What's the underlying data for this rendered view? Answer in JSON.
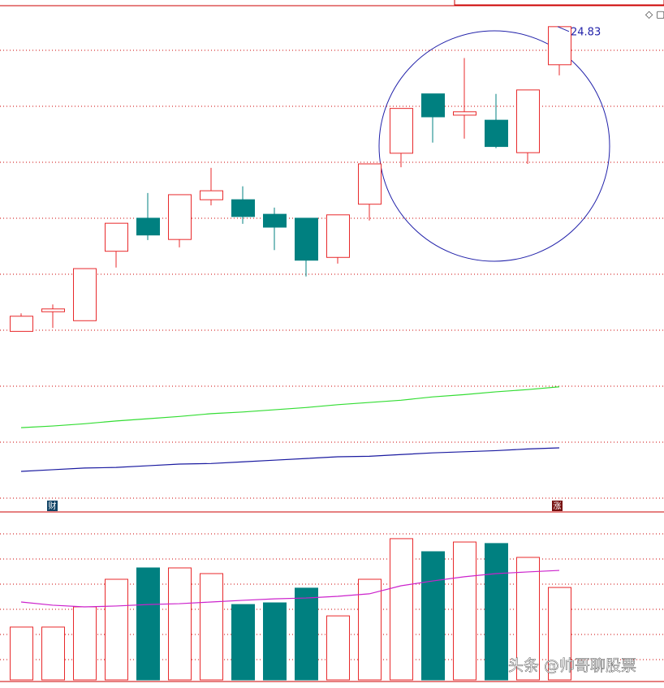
{
  "chart_data": [
    {
      "type": "candlestick",
      "up_color": "#e8292b",
      "down_color": "#008080",
      "ylim": [
        16.18,
        25.19
      ],
      "open": [
        19.39,
        19.74,
        19.58,
        20.82,
        21.41,
        21.03,
        21.74,
        21.74,
        21.48,
        21.41,
        20.71,
        21.66,
        22.57,
        23.63,
        23.25,
        23.16,
        22.58,
        24.15
      ],
      "close": [
        19.66,
        19.79,
        20.51,
        21.32,
        21.11,
        21.83,
        21.9,
        21.44,
        21.25,
        20.66,
        21.47,
        22.38,
        23.37,
        23.22,
        23.31,
        22.69,
        23.7,
        24.83
      ],
      "high": [
        19.71,
        19.87,
        20.51,
        21.32,
        21.86,
        21.83,
        22.31,
        21.98,
        21.6,
        21.41,
        21.47,
        22.38,
        23.37,
        23.63,
        24.27,
        23.63,
        23.7,
        24.83
      ],
      "low": [
        19.39,
        19.45,
        19.58,
        20.53,
        21.02,
        20.89,
        21.64,
        21.31,
        20.84,
        20.37,
        20.6,
        21.37,
        22.32,
        22.76,
        22.83,
        22.66,
        22.38,
        23.96
      ],
      "lines": [
        {
          "color": "#33dd33",
          "values": [
            17.67,
            17.7,
            17.74,
            17.79,
            17.83,
            17.87,
            17.92,
            17.95,
            17.99,
            18.03,
            18.08,
            18.12,
            18.16,
            18.22,
            18.26,
            18.31,
            18.35,
            18.4
          ]
        },
        {
          "color": "#1a1aa0",
          "values": [
            16.89,
            16.92,
            16.95,
            16.96,
            16.99,
            17.02,
            17.03,
            17.06,
            17.09,
            17.12,
            17.15,
            17.16,
            17.19,
            17.22,
            17.24,
            17.26,
            17.29,
            17.31
          ]
        }
      ],
      "annotations": [
        {
          "value": 24.83,
          "label": "24.83"
        }
      ]
    },
    {
      "type": "bar",
      "ylim": [
        0,
        100
      ],
      "values": [
        31.6,
        31.6,
        43.7,
        60.2,
        67.0,
        67.0,
        63.6,
        45.1,
        46.1,
        54.9,
        38.3,
        60.2,
        84.5,
        76.7,
        82.5,
        81.6,
        73.3,
        55.3
      ],
      "line": {
        "color": "#cc22cc",
        "values": [
          46.6,
          44.7,
          43.7,
          44.2,
          45.1,
          45.6,
          46.6,
          47.6,
          48.5,
          49.0,
          50.0,
          51.5,
          56.3,
          59.2,
          61.7,
          63.6,
          64.6,
          65.5
        ]
      }
    }
  ],
  "markers": [
    "财",
    "涨"
  ],
  "watermark": "头条 @帅哥聊股票"
}
